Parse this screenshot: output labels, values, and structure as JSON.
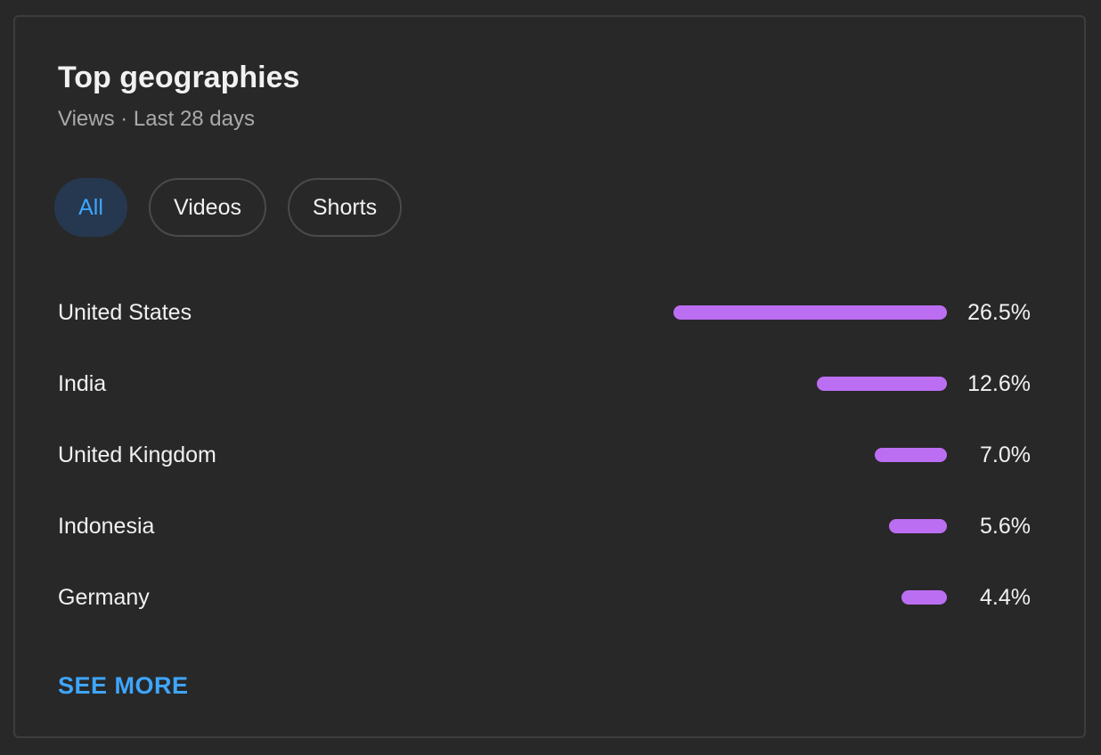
{
  "card": {
    "title": "Top geographies",
    "subtitle": "Views · Last 28 days"
  },
  "filters": [
    {
      "label": "All",
      "selected": true
    },
    {
      "label": "Videos",
      "selected": false
    },
    {
      "label": "Shorts",
      "selected": false
    }
  ],
  "geographies": [
    {
      "country": "United States",
      "percent_label": "26.5%",
      "percent": 26.5
    },
    {
      "country": "India",
      "percent_label": "12.6%",
      "percent": 12.6
    },
    {
      "country": "United Kingdom",
      "percent_label": "7.0%",
      "percent": 7.0
    },
    {
      "country": "Indonesia",
      "percent_label": "5.6%",
      "percent": 5.6
    },
    {
      "country": "Germany",
      "percent_label": "4.4%",
      "percent": 4.4
    }
  ],
  "see_more_label": "SEE MORE",
  "colors": {
    "background": "#282828",
    "bar": "#bc6ef3",
    "accent": "#3ea6ff",
    "selected_chip_bg": "#263850"
  }
}
